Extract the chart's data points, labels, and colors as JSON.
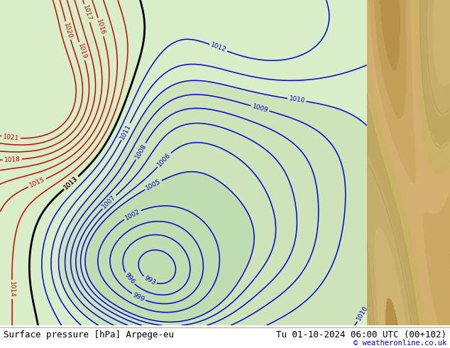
{
  "title_left": "Surface pressure [hPa] Arpege-eu",
  "title_right": "Tu 01-10-2024 06:00 UTC (00+102)",
  "copyright": "© weatheronline.co.uk",
  "figsize": [
    6.34,
    4.9
  ],
  "dpi": 100,
  "map_bg": "#d4e8c0",
  "right_panel_color": "#c8b87a",
  "bottom_bar_color": "#ffffff",
  "contour_blue": "#0000dd",
  "contour_red": "#cc0000",
  "contour_black": "#000000",
  "label_fontsize": 6.5,
  "title_fontsize": 9,
  "copyright_fontsize": 7.5
}
